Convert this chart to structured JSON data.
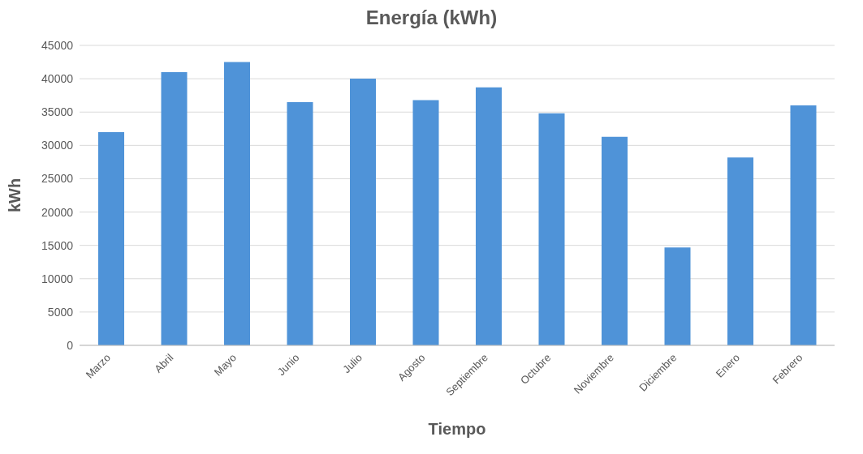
{
  "chart_data": {
    "type": "bar",
    "title": "Energía  (kWh)",
    "xlabel": "Tiempo",
    "ylabel": "kWh",
    "categories": [
      "Marzo",
      "Abril",
      "Mayo",
      "Junio",
      "Julio",
      "Agosto",
      "Septiembre",
      "Octubre",
      "Noviembre",
      "Diciembre",
      "Enero",
      "Febrero"
    ],
    "values": [
      32000,
      41000,
      42500,
      36500,
      40000,
      36800,
      38700,
      34800,
      31300,
      14700,
      28200,
      36000
    ],
    "color": "#4f93d8",
    "ylim": [
      0,
      45000
    ],
    "yticks": [
      0,
      5000,
      10000,
      15000,
      20000,
      25000,
      30000,
      35000,
      40000,
      45000
    ],
    "grid": "y"
  }
}
